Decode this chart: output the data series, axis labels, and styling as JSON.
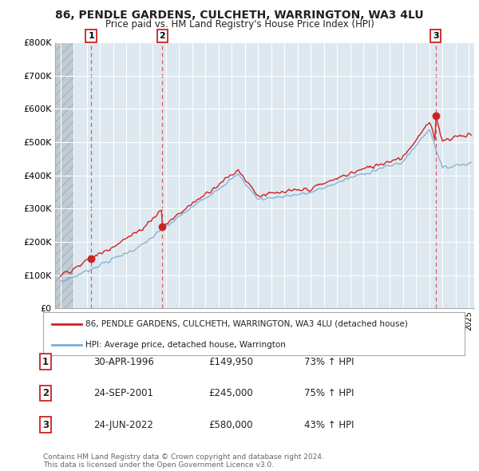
{
  "title": "86, PENDLE GARDENS, CULCHETH, WARRINGTON, WA3 4LU",
  "subtitle": "Price paid vs. HM Land Registry's House Price Index (HPI)",
  "ylim": [
    0,
    800000
  ],
  "yticks": [
    0,
    100000,
    200000,
    300000,
    400000,
    500000,
    600000,
    700000,
    800000
  ],
  "ytick_labels": [
    "£0",
    "£100K",
    "£200K",
    "£300K",
    "£400K",
    "£500K",
    "£600K",
    "£700K",
    "£800K"
  ],
  "transactions": [
    {
      "date": 1996.33,
      "price": 149950,
      "label": "1"
    },
    {
      "date": 2001.73,
      "price": 245000,
      "label": "2"
    },
    {
      "date": 2022.48,
      "price": 580000,
      "label": "3"
    }
  ],
  "table_rows": [
    {
      "num": "1",
      "date": "30-APR-1996",
      "price": "£149,950",
      "hpi": "73% ↑ HPI"
    },
    {
      "num": "2",
      "date": "24-SEP-2001",
      "price": "£245,000",
      "hpi": "75% ↑ HPI"
    },
    {
      "num": "3",
      "date": "24-JUN-2022",
      "price": "£580,000",
      "hpi": "43% ↑ HPI"
    }
  ],
  "legend_line1": "86, PENDLE GARDENS, CULCHETH, WARRINGTON, WA3 4LU (detached house)",
  "legend_line2": "HPI: Average price, detached house, Warrington",
  "footer": "Contains HM Land Registry data © Crown copyright and database right 2024.\nThis data is licensed under the Open Government Licence v3.0.",
  "hpi_color": "#7eaed4",
  "price_color": "#cc2222",
  "dashed_color": "#dd4444",
  "xlim_start": 1993.6,
  "xlim_end": 2025.4,
  "chart_bg": "#dde8f0"
}
